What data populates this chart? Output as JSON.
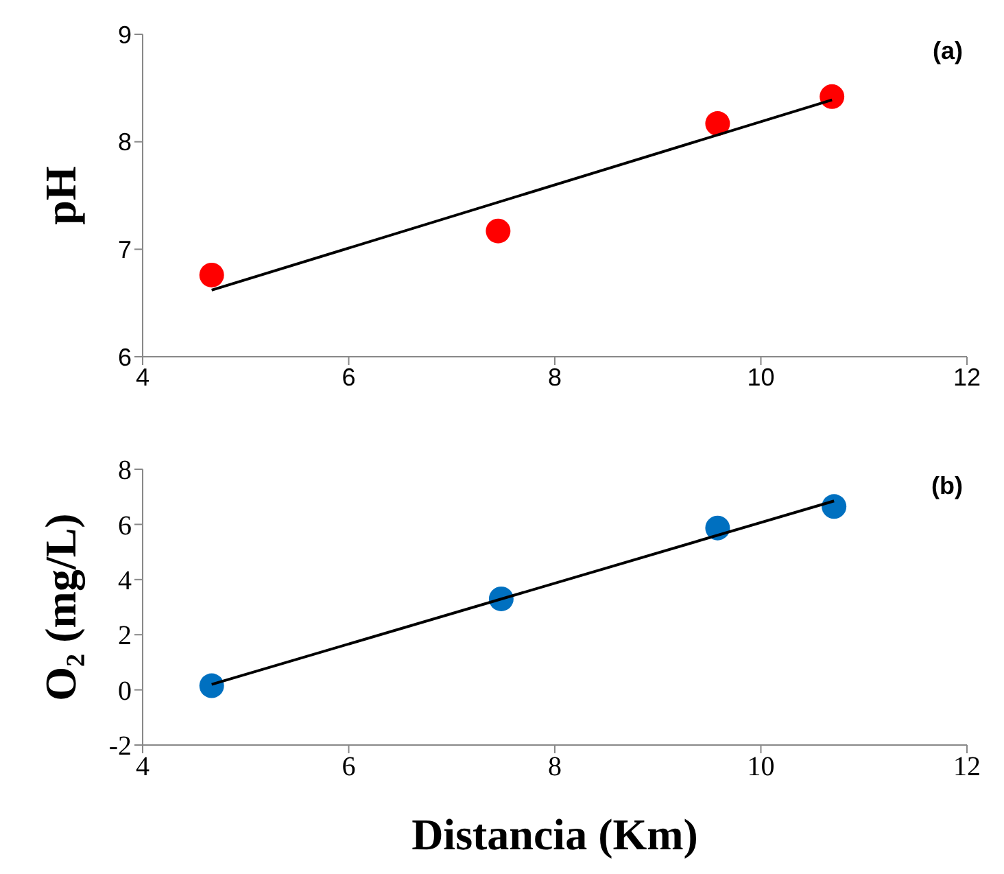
{
  "chart_data": [
    {
      "type": "scatter",
      "ylabel": "pH",
      "annotations": [
        "(a)"
      ],
      "xlim": [
        4,
        12
      ],
      "xticks": [
        4,
        6,
        8,
        10,
        12
      ],
      "ylim": [
        6,
        9
      ],
      "yticks": [
        6,
        7,
        8,
        9
      ],
      "series": [
        {
          "type": "scatter",
          "color": "#ff0000",
          "marker": "circle",
          "x": [
            4.67,
            7.45,
            9.58,
            10.69
          ],
          "values": [
            6.76,
            7.17,
            8.17,
            8.42
          ]
        },
        {
          "type": "line",
          "color": "#000000",
          "marker": "none",
          "line_style": "solid",
          "x": [
            4.67,
            10.69
          ],
          "values": [
            6.62,
            8.39
          ]
        }
      ]
    },
    {
      "type": "scatter",
      "ylabel": "O₂ (mg/L)",
      "xlabel": "Distancia (Km)",
      "annotations": [
        "(b)"
      ],
      "xlim": [
        4,
        12
      ],
      "xticks": [
        4,
        6,
        8,
        10,
        12
      ],
      "ylim": [
        -2,
        8
      ],
      "yticks": [
        -2,
        0,
        2,
        4,
        6,
        8
      ],
      "series": [
        {
          "type": "scatter",
          "color": "#0070c0",
          "marker": "circle",
          "x": [
            4.67,
            7.48,
            9.58,
            10.71
          ],
          "values": [
            0.15,
            3.3,
            5.87,
            6.65
          ]
        },
        {
          "type": "line",
          "color": "#000000",
          "marker": "none",
          "line_style": "solid",
          "x": [
            4.67,
            10.71
          ],
          "values": [
            0.2,
            6.85
          ]
        }
      ]
    }
  ]
}
